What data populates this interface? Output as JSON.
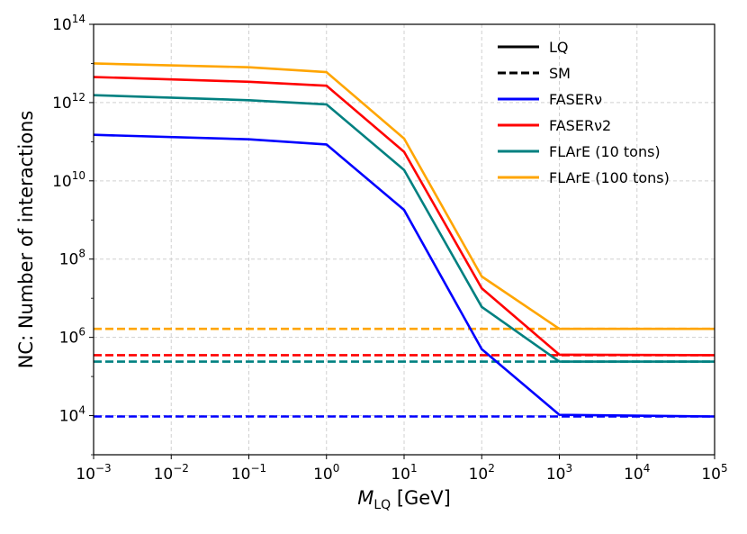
{
  "chart_data": {
    "type": "line",
    "xscale": "log",
    "yscale": "log",
    "xlim": [
      0.001,
      100000
    ],
    "ylim": [
      1000,
      100000000000000
    ],
    "grid": true,
    "x_ticks": [
      {
        "base": "10",
        "exp": "−3",
        "value": 0.001
      },
      {
        "base": "10",
        "exp": "−2",
        "value": 0.01
      },
      {
        "base": "10",
        "exp": "−1",
        "value": 0.1
      },
      {
        "base": "10",
        "exp": "0",
        "value": 1
      },
      {
        "base": "10",
        "exp": "1",
        "value": 10
      },
      {
        "base": "10",
        "exp": "2",
        "value": 100
      },
      {
        "base": "10",
        "exp": "3",
        "value": 1000
      },
      {
        "base": "10",
        "exp": "4",
        "value": 10000
      },
      {
        "base": "10",
        "exp": "5",
        "value": 100000
      }
    ],
    "y_ticks": [
      {
        "base": "10",
        "exp": "4",
        "value": 10000
      },
      {
        "base": "10",
        "exp": "6",
        "value": 1000000
      },
      {
        "base": "10",
        "exp": "8",
        "value": 100000000
      },
      {
        "base": "10",
        "exp": "10",
        "value": 10000000000
      },
      {
        "base": "10",
        "exp": "12",
        "value": 1000000000000
      },
      {
        "base": "10",
        "exp": "14",
        "value": 100000000000000
      }
    ],
    "xlabel": {
      "main": "M",
      "sub": "LQ",
      "unit": " [GeV]"
    },
    "ylabel": "NC: Number of interactions",
    "legend": {
      "position": "top-right",
      "style_entries": [
        {
          "label": "LQ",
          "dash": "solid"
        },
        {
          "label": "SM",
          "dash": "dashed"
        }
      ],
      "color_entries": [
        {
          "label": "FASERν",
          "color": "#0000ff"
        },
        {
          "label": "FASERν2",
          "color": "#ff0000"
        },
        {
          "label": "FLArE (10 tons)",
          "color": "#008080"
        },
        {
          "label": "FLArE (100 tons)",
          "color": "#ffa500"
        }
      ]
    },
    "series": [
      {
        "name": "FASERν (LQ)",
        "color": "#0000ff",
        "dash": "solid",
        "x": [
          0.001,
          0.1,
          1,
          10,
          100,
          1000,
          100000
        ],
        "y": [
          150000000000,
          115000000000,
          85000000000,
          1800000000,
          500000,
          10500,
          9500
        ]
      },
      {
        "name": "FASERν2 (LQ)",
        "color": "#ff0000",
        "dash": "solid",
        "x": [
          0.001,
          0.1,
          1,
          10,
          100,
          1000,
          100000
        ],
        "y": [
          4500000000000,
          3400000000000,
          2700000000000,
          55000000000,
          18000000,
          360000,
          350000
        ]
      },
      {
        "name": "FLArE (10 tons) (LQ)",
        "color": "#008080",
        "dash": "solid",
        "x": [
          0.001,
          0.1,
          1,
          10,
          100,
          1000,
          100000
        ],
        "y": [
          1550000000000,
          1150000000000,
          900000000000,
          19000000000,
          6000000,
          240000,
          240000
        ]
      },
      {
        "name": "FLArE (100 tons) (LQ)",
        "color": "#ffa500",
        "dash": "solid",
        "x": [
          0.001,
          0.1,
          1,
          10,
          100,
          1000,
          100000
        ],
        "y": [
          10000000000000,
          8000000000000,
          6000000000000,
          120000000000,
          36000000,
          1650000,
          1650000
        ]
      },
      {
        "name": "FASERν (SM)",
        "color": "#0000ff",
        "dash": "dashed",
        "x": [
          0.001,
          100000
        ],
        "y": [
          9500,
          9500
        ]
      },
      {
        "name": "FASERν2 (SM)",
        "color": "#ff0000",
        "dash": "dashed",
        "x": [
          0.001,
          100000
        ],
        "y": [
          350000,
          350000
        ]
      },
      {
        "name": "FLArE (10 tons) (SM)",
        "color": "#008080",
        "dash": "dashed",
        "x": [
          0.001,
          100000
        ],
        "y": [
          240000,
          240000
        ]
      },
      {
        "name": "FLArE (100 tons) (SM)",
        "color": "#ffa500",
        "dash": "dashed",
        "x": [
          0.001,
          100000
        ],
        "y": [
          1650000,
          1650000
        ]
      }
    ]
  }
}
